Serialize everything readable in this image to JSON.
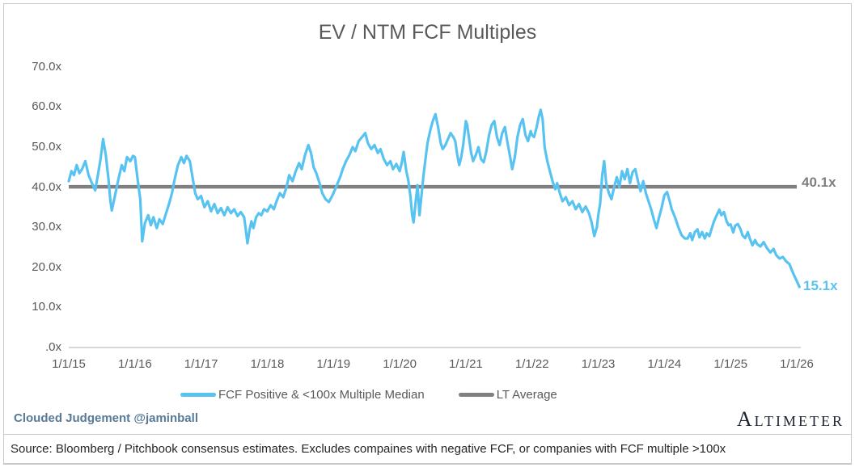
{
  "title": "EV / NTM FCF Multiples",
  "annotations": {
    "lt_average_label": "40.1x",
    "last_value_label": "15.1x"
  },
  "footer": {
    "credit": "Clouded Judgement @jaminball",
    "logo": "Altimeter",
    "source": "Source: Bloomberg / Pitchbook consensus estimates. Excludes compaines with negative FCF, or companies with FCF multiple >100x"
  },
  "colors": {
    "series_blue": "#58C3F0",
    "average_gray": "#808080",
    "axis_gray": "#bfbfbf",
    "label_gray": "#595959"
  },
  "chart_data": {
    "type": "line",
    "title": "EV / NTM FCF Multiples",
    "xlabel": "",
    "ylabel": "",
    "ylim": [
      0,
      75
    ],
    "x_range_years": [
      2015.0,
      2026.08
    ],
    "grid": false,
    "legend_position": "bottom",
    "y_ticks": [
      {
        "value": 70,
        "label": "70.0x"
      },
      {
        "value": 60,
        "label": "60.0x"
      },
      {
        "value": 50,
        "label": "50.0x"
      },
      {
        "value": 40,
        "label": "40.0x"
      },
      {
        "value": 30,
        "label": "30.0x"
      },
      {
        "value": 20,
        "label": "20.0x"
      },
      {
        "value": 10,
        "label": "10.0x"
      },
      {
        "value": 0,
        "label": ".0x"
      }
    ],
    "x_ticks": [
      {
        "year": 2015,
        "label": "1/1/15"
      },
      {
        "year": 2016,
        "label": "1/1/16"
      },
      {
        "year": 2017,
        "label": "1/1/17"
      },
      {
        "year": 2018,
        "label": "1/1/18"
      },
      {
        "year": 2019,
        "label": "1/1/19"
      },
      {
        "year": 2020,
        "label": "1/1/20"
      },
      {
        "year": 2021,
        "label": "1/1/21"
      },
      {
        "year": 2022,
        "label": "1/1/22"
      },
      {
        "year": 2023,
        "label": "1/1/23"
      },
      {
        "year": 2024,
        "label": "1/1/24"
      },
      {
        "year": 2025,
        "label": "1/1/25"
      },
      {
        "year": 2026,
        "label": "1/1/26"
      }
    ],
    "legend": [
      {
        "name": "FCF Positive & <100x Multiple Median",
        "color": "#58C3F0"
      },
      {
        "name": "LT Average",
        "color": "#808080"
      }
    ],
    "lt_average": 40.1,
    "last_value": 15.1,
    "series": [
      {
        "name": "FCF Positive & <100x Multiple Median",
        "color": "#58C3F0",
        "points": [
          [
            2015.0,
            41.5
          ],
          [
            2015.04,
            44.0
          ],
          [
            2015.08,
            43.0
          ],
          [
            2015.12,
            45.5
          ],
          [
            2015.16,
            43.5
          ],
          [
            2015.2,
            44.5
          ],
          [
            2015.25,
            46.5
          ],
          [
            2015.3,
            43.0
          ],
          [
            2015.35,
            41.0
          ],
          [
            2015.4,
            39.2
          ],
          [
            2015.44,
            43.0
          ],
          [
            2015.48,
            47.0
          ],
          [
            2015.52,
            52.0
          ],
          [
            2015.56,
            48.0
          ],
          [
            2015.6,
            42.0
          ],
          [
            2015.63,
            36.5
          ],
          [
            2015.65,
            34.2
          ],
          [
            2015.7,
            38.0
          ],
          [
            2015.75,
            42.0
          ],
          [
            2015.8,
            45.5
          ],
          [
            2015.84,
            44.0
          ],
          [
            2015.88,
            47.5
          ],
          [
            2015.93,
            46.5
          ],
          [
            2015.97,
            47.8
          ],
          [
            2016.0,
            47.5
          ],
          [
            2016.04,
            42.0
          ],
          [
            2016.08,
            37.0
          ],
          [
            2016.11,
            26.5
          ],
          [
            2016.15,
            31.0
          ],
          [
            2016.2,
            33.0
          ],
          [
            2016.24,
            30.5
          ],
          [
            2016.28,
            32.5
          ],
          [
            2016.33,
            29.8
          ],
          [
            2016.37,
            32.0
          ],
          [
            2016.42,
            30.8
          ],
          [
            2016.46,
            33.0
          ],
          [
            2016.51,
            35.5
          ],
          [
            2016.56,
            38.5
          ],
          [
            2016.6,
            42.0
          ],
          [
            2016.65,
            45.5
          ],
          [
            2016.7,
            47.5
          ],
          [
            2016.74,
            46.0
          ],
          [
            2016.78,
            47.8
          ],
          [
            2016.83,
            46.5
          ],
          [
            2016.87,
            42.5
          ],
          [
            2016.91,
            38.5
          ],
          [
            2016.95,
            37.0
          ],
          [
            2017.0,
            37.8
          ],
          [
            2017.05,
            35.0
          ],
          [
            2017.1,
            36.5
          ],
          [
            2017.15,
            34.0
          ],
          [
            2017.2,
            35.8
          ],
          [
            2017.25,
            33.5
          ],
          [
            2017.3,
            34.8
          ],
          [
            2017.35,
            33.0
          ],
          [
            2017.4,
            35.0
          ],
          [
            2017.45,
            33.5
          ],
          [
            2017.5,
            34.5
          ],
          [
            2017.55,
            32.8
          ],
          [
            2017.6,
            33.8
          ],
          [
            2017.65,
            32.5
          ],
          [
            2017.67,
            30.0
          ],
          [
            2017.7,
            26.0
          ],
          [
            2017.73,
            29.2
          ],
          [
            2017.76,
            31.5
          ],
          [
            2017.79,
            29.8
          ],
          [
            2017.83,
            32.5
          ],
          [
            2017.87,
            33.5
          ],
          [
            2017.91,
            33.0
          ],
          [
            2017.95,
            34.5
          ],
          [
            2018.0,
            34.0
          ],
          [
            2018.05,
            35.5
          ],
          [
            2018.1,
            34.5
          ],
          [
            2018.14,
            36.5
          ],
          [
            2018.19,
            38.5
          ],
          [
            2018.24,
            37.5
          ],
          [
            2018.29,
            40.0
          ],
          [
            2018.33,
            43.0
          ],
          [
            2018.38,
            41.5
          ],
          [
            2018.43,
            44.0
          ],
          [
            2018.48,
            46.0
          ],
          [
            2018.52,
            44.5
          ],
          [
            2018.57,
            48.0
          ],
          [
            2018.62,
            50.5
          ],
          [
            2018.66,
            48.5
          ],
          [
            2018.7,
            45.0
          ],
          [
            2018.74,
            43.5
          ],
          [
            2018.79,
            41.0
          ],
          [
            2018.83,
            38.5
          ],
          [
            2018.88,
            37.0
          ],
          [
            2018.93,
            36.3
          ],
          [
            2018.97,
            37.5
          ],
          [
            2019.0,
            38.5
          ],
          [
            2019.05,
            40.5
          ],
          [
            2019.1,
            42.5
          ],
          [
            2019.14,
            44.5
          ],
          [
            2019.19,
            46.5
          ],
          [
            2019.24,
            48.0
          ],
          [
            2019.29,
            50.0
          ],
          [
            2019.33,
            49.0
          ],
          [
            2019.38,
            51.5
          ],
          [
            2019.43,
            52.5
          ],
          [
            2019.48,
            53.5
          ],
          [
            2019.52,
            51.0
          ],
          [
            2019.57,
            49.5
          ],
          [
            2019.62,
            50.5
          ],
          [
            2019.67,
            48.5
          ],
          [
            2019.71,
            49.5
          ],
          [
            2019.76,
            47.0
          ],
          [
            2019.81,
            45.5
          ],
          [
            2019.86,
            46.5
          ],
          [
            2019.9,
            44.5
          ],
          [
            2019.95,
            45.8
          ],
          [
            2020.0,
            44.0
          ],
          [
            2020.03,
            46.0
          ],
          [
            2020.06,
            48.8
          ],
          [
            2020.1,
            44.0
          ],
          [
            2020.13,
            41.8
          ],
          [
            2020.16,
            38.0
          ],
          [
            2020.19,
            33.0
          ],
          [
            2020.21,
            31.2
          ],
          [
            2020.24,
            36.0
          ],
          [
            2020.27,
            40.5
          ],
          [
            2020.3,
            33.0
          ],
          [
            2020.33,
            38.0
          ],
          [
            2020.36,
            43.0
          ],
          [
            2020.39,
            47.0
          ],
          [
            2020.42,
            51.0
          ],
          [
            2020.46,
            54.0
          ],
          [
            2020.5,
            56.5
          ],
          [
            2020.54,
            58.2
          ],
          [
            2020.58,
            55.0
          ],
          [
            2020.62,
            51.0
          ],
          [
            2020.65,
            49.5
          ],
          [
            2020.69,
            50.5
          ],
          [
            2020.73,
            52.0
          ],
          [
            2020.77,
            53.5
          ],
          [
            2020.81,
            52.5
          ],
          [
            2020.84,
            51.5
          ],
          [
            2020.87,
            48.0
          ],
          [
            2020.9,
            45.5
          ],
          [
            2020.93,
            47.5
          ],
          [
            2020.96,
            50.5
          ],
          [
            2020.98,
            53.5
          ],
          [
            2021.0,
            56.5
          ],
          [
            2021.02,
            55.5
          ],
          [
            2021.05,
            52.0
          ],
          [
            2021.08,
            48.5
          ],
          [
            2021.11,
            46.5
          ],
          [
            2021.15,
            48.0
          ],
          [
            2021.19,
            50.0
          ],
          [
            2021.23,
            47.0
          ],
          [
            2021.27,
            46.2
          ],
          [
            2021.31,
            49.0
          ],
          [
            2021.35,
            53.0
          ],
          [
            2021.39,
            55.5
          ],
          [
            2021.43,
            56.5
          ],
          [
            2021.47,
            52.5
          ],
          [
            2021.51,
            50.5
          ],
          [
            2021.55,
            53.5
          ],
          [
            2021.59,
            55.0
          ],
          [
            2021.63,
            51.0
          ],
          [
            2021.67,
            47.5
          ],
          [
            2021.7,
            44.5
          ],
          [
            2021.74,
            47.5
          ],
          [
            2021.78,
            52.5
          ],
          [
            2021.82,
            55.5
          ],
          [
            2021.86,
            57.0
          ],
          [
            2021.9,
            53.0
          ],
          [
            2021.94,
            51.5
          ],
          [
            2021.98,
            54.0
          ],
          [
            2022.0,
            53.0
          ],
          [
            2022.03,
            52.5
          ],
          [
            2022.07,
            55.0
          ],
          [
            2022.1,
            57.5
          ],
          [
            2022.13,
            59.3
          ],
          [
            2022.16,
            57.0
          ],
          [
            2022.19,
            50.0
          ],
          [
            2022.23,
            46.5
          ],
          [
            2022.27,
            44.0
          ],
          [
            2022.31,
            41.5
          ],
          [
            2022.35,
            39.5
          ],
          [
            2022.38,
            41.0
          ],
          [
            2022.42,
            38.5
          ],
          [
            2022.46,
            36.5
          ],
          [
            2022.51,
            37.5
          ],
          [
            2022.56,
            35.5
          ],
          [
            2022.61,
            36.5
          ],
          [
            2022.66,
            34.5
          ],
          [
            2022.71,
            35.8
          ],
          [
            2022.76,
            33.8
          ],
          [
            2022.81,
            35.2
          ],
          [
            2022.86,
            33.5
          ],
          [
            2022.9,
            31.2
          ],
          [
            2022.94,
            27.8
          ],
          [
            2022.98,
            30.0
          ],
          [
            2023.0,
            33.0
          ],
          [
            2023.03,
            36.0
          ],
          [
            2023.06,
            43.0
          ],
          [
            2023.09,
            46.5
          ],
          [
            2023.12,
            41.0
          ],
          [
            2023.16,
            38.5
          ],
          [
            2023.2,
            37.0
          ],
          [
            2023.24,
            40.0
          ],
          [
            2023.28,
            42.5
          ],
          [
            2023.32,
            40.0
          ],
          [
            2023.36,
            44.0
          ],
          [
            2023.4,
            42.0
          ],
          [
            2023.44,
            44.5
          ],
          [
            2023.48,
            41.0
          ],
          [
            2023.52,
            43.8
          ],
          [
            2023.56,
            44.5
          ],
          [
            2023.6,
            41.5
          ],
          [
            2023.64,
            39.0
          ],
          [
            2023.68,
            41.5
          ],
          [
            2023.72,
            38.5
          ],
          [
            2023.76,
            36.5
          ],
          [
            2023.8,
            34.5
          ],
          [
            2023.84,
            32.0
          ],
          [
            2023.88,
            29.8
          ],
          [
            2023.92,
            32.5
          ],
          [
            2023.96,
            35.0
          ],
          [
            2023.98,
            36.5
          ],
          [
            2024.0,
            38.0
          ],
          [
            2024.04,
            38.8
          ],
          [
            2024.08,
            36.5
          ],
          [
            2024.11,
            34.5
          ],
          [
            2024.16,
            32.5
          ],
          [
            2024.21,
            30.0
          ],
          [
            2024.26,
            28.0
          ],
          [
            2024.31,
            27.2
          ],
          [
            2024.35,
            27.2
          ],
          [
            2024.39,
            28.5
          ],
          [
            2024.42,
            26.8
          ],
          [
            2024.46,
            28.8
          ],
          [
            2024.5,
            29.5
          ],
          [
            2024.53,
            27.5
          ],
          [
            2024.57,
            28.8
          ],
          [
            2024.61,
            27.2
          ],
          [
            2024.64,
            28.5
          ],
          [
            2024.68,
            27.8
          ],
          [
            2024.72,
            30.0
          ],
          [
            2024.75,
            31.5
          ],
          [
            2024.79,
            33.0
          ],
          [
            2024.83,
            34.4
          ],
          [
            2024.86,
            33.0
          ],
          [
            2024.9,
            33.8
          ],
          [
            2024.94,
            31.5
          ],
          [
            2024.97,
            30.5
          ],
          [
            2025.0,
            30.7
          ],
          [
            2025.04,
            28.7
          ],
          [
            2025.07,
            30.4
          ],
          [
            2025.11,
            30.8
          ],
          [
            2025.15,
            29.5
          ],
          [
            2025.18,
            28.0
          ],
          [
            2025.22,
            27.3
          ],
          [
            2025.26,
            28.8
          ],
          [
            2025.29,
            27.2
          ],
          [
            2025.33,
            25.5
          ],
          [
            2025.37,
            26.8
          ],
          [
            2025.4,
            25.8
          ],
          [
            2025.45,
            25.2
          ],
          [
            2025.5,
            26.3
          ],
          [
            2025.55,
            24.8
          ],
          [
            2025.6,
            23.7
          ],
          [
            2025.65,
            24.6
          ],
          [
            2025.69,
            23.0
          ],
          [
            2025.74,
            22.2
          ],
          [
            2025.79,
            22.6
          ],
          [
            2025.84,
            21.5
          ],
          [
            2025.89,
            20.8
          ],
          [
            2025.92,
            19.5
          ],
          [
            2025.96,
            18.0
          ],
          [
            2026.0,
            16.6
          ],
          [
            2026.04,
            15.1
          ]
        ]
      },
      {
        "name": "LT Average",
        "color": "#808080",
        "constant_value": 40.1
      }
    ]
  }
}
